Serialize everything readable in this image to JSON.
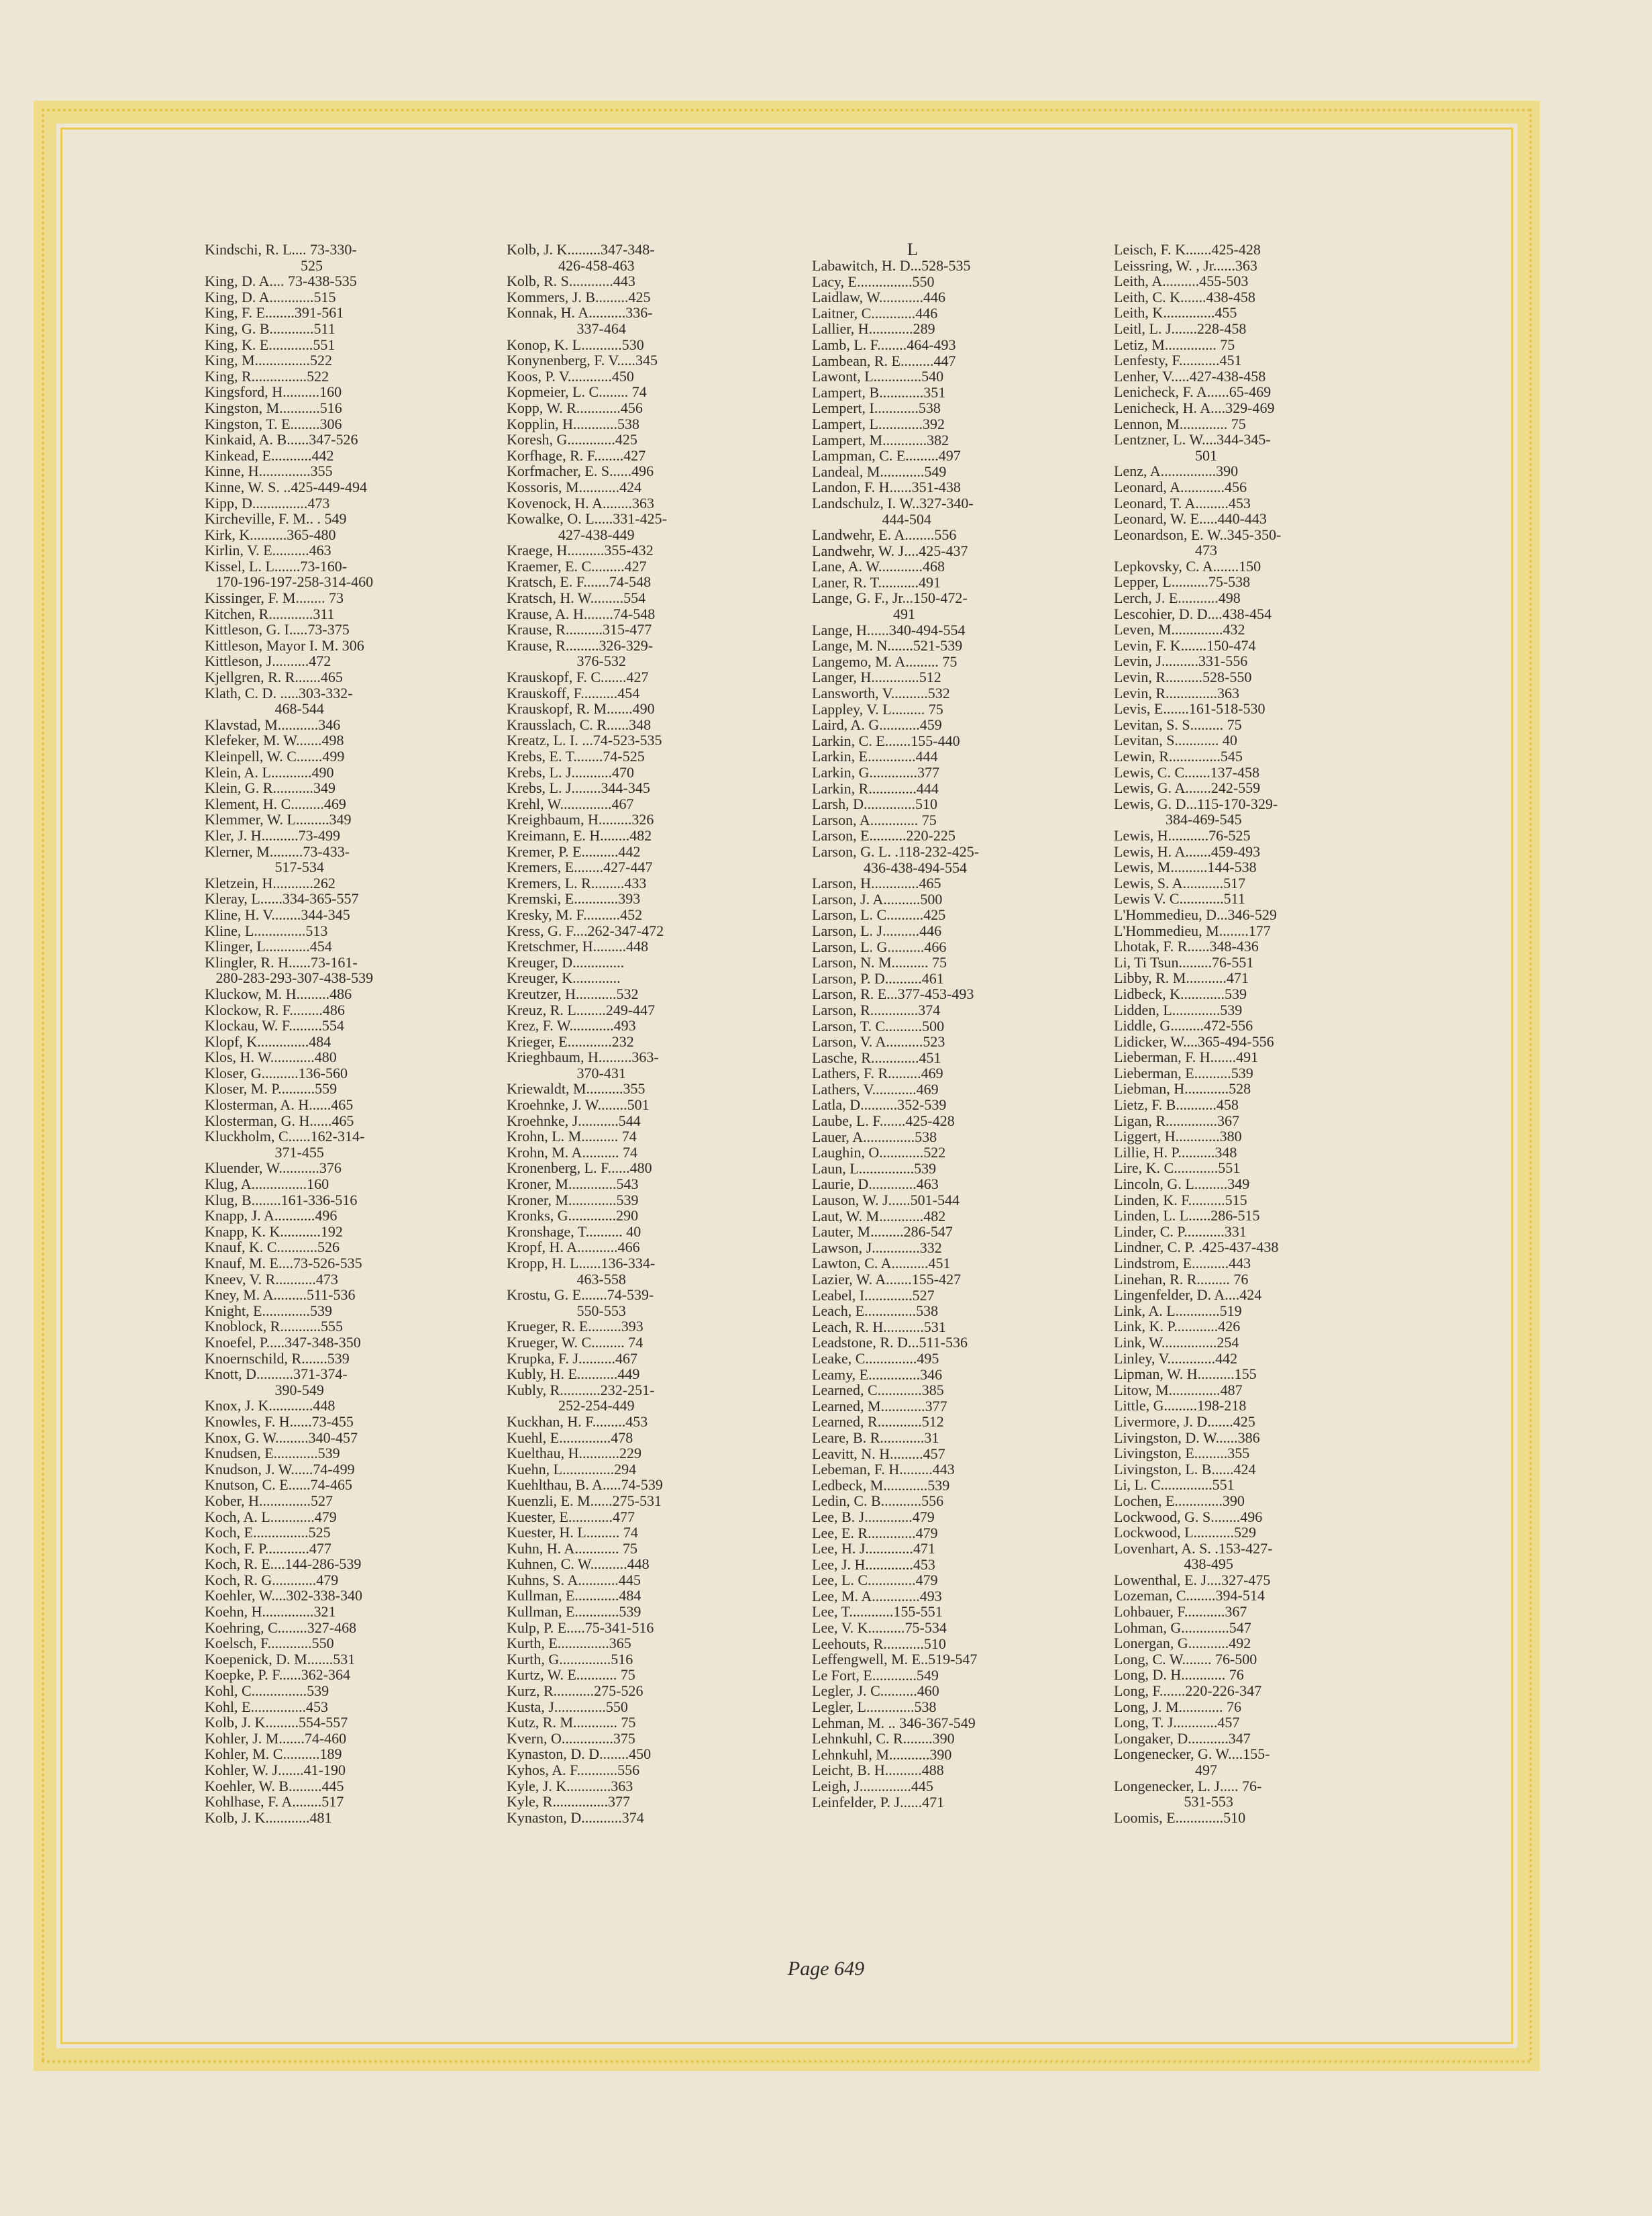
{
  "section_letter": "L",
  "footer": "Page 649",
  "columns": [
    [
      "Kindschi, R. L.... 73-330-",
      "                          525",
      "King, D. A.... 73-438-535",
      "King, D. A............515",
      "King, F. E........391-561",
      "King, G. B............511",
      "King, K. E............551",
      "King, M...............522",
      "King, R...............522",
      "Kingsford, H..........160",
      "Kingston, M...........516",
      "Kingston, T. E........306",
      "Kinkaid, A. B......347-526",
      "Kinkead, E...........442",
      "Kinne, H..............355",
      "Kinne, W. S. ..425-449-494",
      "Kipp, D...............473",
      "Kircheville, F. M.. . 549",
      "Kirk, K..........365-480",
      "Kirlin, V. E..........463",
      "Kissel, L. L.......73-160-",
      "   170-196-197-258-314-460",
      "Kissinger, F. M........ 73",
      "Kitchen, R............311",
      "Kittleson, G. I.....73-375",
      "Kittleson, Mayor I. M. 306",
      "Kittleson, J..........472",
      "Kjellgren, R. R.......465",
      "Klath, C. D. .....303-332-",
      "                   468-544",
      "Klavstad, M...........346",
      "Klefeker, M. W.......498",
      "Kleinpell, W. C.......499",
      "Klein, A. L...........490",
      "Klein, G. R...........349",
      "Klement, H. C.........469",
      "Klemmer, W. L.........349",
      "Kler, J. H..........73-499",
      "Klerner, M.........73-433-",
      "                   517-534",
      "Kletzein, H...........262",
      "Kleray, L......334-365-557",
      "Kline, H. V........344-345",
      "Kline, L..............513",
      "Klinger, L............454",
      "Klingler, R. H......73-161-",
      "   280-283-293-307-438-539",
      "Kluckow, M. H.........486",
      "Klockow, R. F.........486",
      "Klockau, W. F.........554",
      "Klopf, K..............484",
      "Klos, H. W............480",
      "Kloser, G..........136-560",
      "Kloser, M. P..........559",
      "Klosterman, A. H......465",
      "Klosterman, G. H......465",
      "Kluckholm, C......162-314-",
      "                   371-455",
      "Kluender, W...........376",
      "Klug, A...............160",
      "Klug, B........161-336-516",
      "Knapp, J. A...........496",
      "Knapp, K. K...........192",
      "Knauf, K. C...........526",
      "Knauf, M. E....73-526-535",
      "Kneev, V. R...........473",
      "Kney, M. A.........511-536",
      "Knight, E.............539",
      "Knoblock, R...........555",
      "Knoefel, P.....347-348-350",
      "Knoernschild, R.......539",
      "Knott, D..........371-374-",
      "                   390-549",
      "Knox, J. K............448",
      "Knowles, F. H......73-455",
      "Knox, G. W.........340-457",
      "Knudsen, E............539",
      "Knudson, J. W......74-499",
      "Knutson, C. E......74-465",
      "Kober, H..............527",
      "Koch, A. L............479",
      "Koch, E...............525",
      "Koch, F. P............477",
      "Koch, R. E....144-286-539",
      "Koch, R. G............479",
      "Koehler, W....302-338-340",
      "Koehn, H..............321",
      "Koehring, C........327-468",
      "Koelsch, F............550",
      "Koepenick, D. M.......531",
      "Koepke, P. F......362-364",
      "Kohl, C...............539",
      "Kohl, E...............453",
      "Kolb, J. K.........554-557",
      "Kohler, J. M.......74-460",
      "Kohler, M. C..........189",
      "Kohler, W. J.......41-190",
      "Koehler, W. B.........445",
      "Kohlhase, F. A........517",
      "Kolb, J. K............481"
    ],
    [
      "Kolb, J. K.........347-348-",
      "              426-458-463",
      "Kolb, R. S............443",
      "Kommers, J. B.........425",
      "Konnak, H. A..........336-",
      "                   337-464",
      "Konop, K. L...........530",
      "Konynenberg, F. V.....345",
      "Koos, P. V............450",
      "Kopmeier, L. C........ 74",
      "Kopp, W. R............456",
      "Kopplin, H............538",
      "Koresh, G.............425",
      "Korfhage, R. F........427",
      "Korfmacher, E. S......496",
      "Kossoris, M...........424",
      "Kovenock, H. A........363",
      "Kowalke, O. L.....331-425-",
      "              427-438-449",
      "Kraege, H..........355-432",
      "Kraemer, E. C.........427",
      "Kratsch, E. F.......74-548",
      "Kratsch, H. W.........554",
      "Krause, A. H........74-548",
      "Krause, R..........315-477",
      "Krause, R.........326-329-",
      "                   376-532",
      "Krauskopf, F. C.......427",
      "Krauskoff, F..........454",
      "Krauskopf, R. M.......490",
      "Krausslach, C. R......348",
      "Kreatz, L. I. ...74-523-535",
      "Krebs, E. T........74-525",
      "Krebs, L. J...........470",
      "Krebs, L. J........344-345",
      "Krehl, W..............467",
      "Kreighbaum, H.........326",
      "Kreimann, E. H........482",
      "Kremer, P. E..........442",
      "Kremers, E........427-447",
      "Kremers, L. R.........433",
      "Kremski, E............393",
      "Kresky, M. F..........452",
      "Kress, G. F....262-347-472",
      "Kretschmer, H.........448",
      "Kreuger, D..............",
      "Kreuger, K.............",
      "Kreutzer, H...........532",
      "Kreuz, R. L........249-447",
      "Krez, F. W............493",
      "Krieger, E............232",
      "Krieghbaum, H.........363-",
      "                   370-431",
      "Kriewaldt, M..........355",
      "Kroehnke, J. W........501",
      "Kroehnke, J...........544",
      "Krohn, L. M.......... 74",
      "Krohn, M. A.......... 74",
      "Kronenberg, L. F......480",
      "Kroner, M.............543",
      "Kroner, M.............539",
      "Kronks, G.............290",
      "Kronshage, T.......... 40",
      "Kropf, H. A...........466",
      "Kropp, H. L......136-334-",
      "                   463-558",
      "Krostu, G. E.......74-539-",
      "                   550-553",
      "Krueger, R. E.........393",
      "Krueger, W. C......... 74",
      "Krupka, F. J..........467",
      "Kubly, H. E...........449",
      "Kubly, R...........232-251-",
      "              252-254-449",
      "Kuckhan, H. F.........453",
      "Kuehl, E..............478",
      "Kuelthau, H...........229",
      "Kuehn, L..............294",
      "Kuehlthau, B. A.....74-539",
      "Kuenzli, E. M......275-531",
      "Kuester, E............477",
      "Kuester, H. L......... 74",
      "Kuhn, H. A............ 75",
      "Kuhnen, C. W..........448",
      "Kuhns, S. A...........445",
      "Kullman, E............484",
      "Kullman, E............539",
      "Kulp, P. E.....75-341-516",
      "Kurth, E..............365",
      "Kurth, G..............516",
      "Kurtz, W. E........... 75",
      "Kurz, R...........275-526",
      "Kusta, J..............550",
      "Kutz, R. M............ 75",
      "Kvern, O..............375",
      "Kynaston, D. D........450",
      "Kyhos, A. F...........556",
      "Kyle, J. K............363",
      "Kyle, R...............377",
      "Kynaston, D...........374"
    ],
    [
      "Labawitch, H. D...528-535",
      "Lacy, E...............550",
      "Laidlaw, W............446",
      "Laitner, C............446",
      "Lallier, H............289",
      "Lamb, L. F........464-493",
      "Lambean, R. E.........447",
      "Lawont, L.............540",
      "Lampert, B............351",
      "Lempert, I............538",
      "Lampert, L............392",
      "Lampert, M............382",
      "Lampman, C. E.........497",
      "Landeal, M............549",
      "Landon, F. H......351-438",
      "Landschulz, I. W..327-340-",
      "                   444-504",
      "Landwehr, E. A........556",
      "Landwehr, W. J....425-437",
      "Lane, A. W............468",
      "Laner, R. T...........491",
      "Lange, G. F., Jr...150-472-",
      "                      491",
      "Lange, H......340-494-554",
      "Lange, M. N.......521-539",
      "Langemo, M. A......... 75",
      "Langer, H.............512",
      "Lansworth, V..........532",
      "Lappley, V. L......... 75",
      "Laird, A. G...........459",
      "Larkin, C. E.......155-440",
      "Larkin, E.............444",
      "Larkin, G.............377",
      "Larkin, R.............444",
      "Larsh, D..............510",
      "Larson, A............. 75",
      "Larson, E..........220-225",
      "Larson, G. L. .118-232-425-",
      "              436-438-494-554",
      "Larson, H.............465",
      "Larson, J. A..........500",
      "Larson, L. C..........425",
      "Larson, L. J..........446",
      "Larson, L. G..........466",
      "Larson, N. M.......... 75",
      "Larson, P. D..........461",
      "Larson, R. E...377-453-493",
      "Larson, R.............374",
      "Larson, T. C..........500",
      "Larson, V. A..........523",
      "Lasche, R.............451",
      "Lathers, F. R.........469",
      "Lathers, V............469",
      "Latla, D..........352-539",
      "Laube, L. F.......425-428",
      "Lauer, A..............538",
      "Laughin, O............522",
      "Laun, L...............539",
      "Laurie, D.............463",
      "Lauson, W. J......501-544",
      "Laut, W. M............482",
      "Lauter, M.........286-547",
      "Lawson, J.............332",
      "Lawton, C. A..........451",
      "Lazier, W. A.......155-427",
      "Leabel, I.............527",
      "Leach, E..............538",
      "Leach, R. H...........531",
      "Leadstone, R. D...511-536",
      "Leake, C..............495",
      "Leamy, E..............346",
      "Learned, C............385",
      "Learned, M............377",
      "Learned, R............512",
      "Leare, B. R............31",
      "Leavitt, N. H.........457",
      "Lebeman, F. H.........443",
      "Ledbeck, M............539",
      "Ledin, C. B...........556",
      "Lee, B. J.............479",
      "Lee, E. R.............479",
      "Lee, H. J.............471",
      "Lee, J. H.............453",
      "Lee, L. C.............479",
      "Lee, M. A.............493",
      "Lee, T............155-551",
      "Lee, V. K..........75-534",
      "Leehouts, R...........510",
      "Leffengwell, M. E..519-547",
      "Le Fort, E............549",
      "Legler, J. C..........460",
      "Legler, L.............538",
      "Lehman, M. .. 346-367-549",
      "Lehnkuhl, C. R........390",
      "Lehnkuhl, M...........390",
      "Leicht, B. H..........488",
      "Leigh, J..............445",
      "Leinfelder, P. J......471"
    ],
    [
      "Leisch, F. K.......425-428",
      "Leissring, W. , Jr......363",
      "Leith, A..........455-503",
      "Leith, C. K.......438-458",
      "Leith, K..............455",
      "Leitl, L. J.......228-458",
      "Letiz, M.............. 75",
      "Lenfesty, F...........451",
      "Lenher, V.....427-438-458",
      "Lenicheck, F. A......65-469",
      "Lenicheck, H. A....329-469",
      "Lennon, M............. 75",
      "Lentzner, L. W....344-345-",
      "                      501",
      "Lenz, A...............390",
      "Leonard, A............456",
      "Leonard, T. A.........453",
      "Leonard, W. E.....440-443",
      "Leonardson, E. W..345-350-",
      "                      473",
      "Lepkovsky, C. A.......150",
      "Lepper, L..........75-538",
      "Lerch, J. E...........498",
      "Lescohier, D. D....438-454",
      "Leven, M..............432",
      "Levin, F. K.......150-474",
      "Levin, J..........331-556",
      "Levin, R..........528-550",
      "Levin, R..............363",
      "Levis, E.......161-518-530",
      "Levitan, S. S......... 75",
      "Levitan, S............ 40",
      "Lewin, R..............545",
      "Lewis, C. C.......137-458",
      "Lewis, G. A.......242-559",
      "Lewis, G. D...115-170-329-",
      "              384-469-545",
      "Lewis, H...........76-525",
      "Lewis, H. A.......459-493",
      "Lewis, M..........144-538",
      "Lewis, S. A...........517",
      "Lewis V. C............511",
      "L'Hommedieu, D...346-529",
      "L'Hommedieu, M........177",
      "Lhotak, F. R......348-436",
      "Li, Ti Tsun.........76-551",
      "Libby, R. M...........471",
      "Lidbeck, K............539",
      "Lidden, L.............539",
      "Liddle, G.........472-556",
      "Lidicker, W....365-494-556",
      "Lieberman, F. H.......491",
      "Lieberman, E..........539",
      "Liebman, H............528",
      "Lietz, F. B...........458",
      "Ligan, R..............367",
      "Liggert, H............380",
      "Lillie, H. P..........348",
      "Lire, K. C............551",
      "Lincoln, G. L.........349",
      "Linden, K. F..........515",
      "Linden, L. L......286-515",
      "Linder, C. P...........331",
      "Lindner, C. P. .425-437-438",
      "Lindstrom, E..........443",
      "Linehan, R. R......... 76",
      "Lingenfelder, D. A....424",
      "Link, A. L............519",
      "Link, K. P............426",
      "Link, W...............254",
      "Linley, V.............442",
      "Lipman, W. H..........155",
      "Litow, M..............487",
      "Little, G.........198-218",
      "Livermore, J. D.......425",
      "Livingston, D. W......386",
      "Livingston, E.........355",
      "Livingston, L. B......424",
      "Li, L. C..............551",
      "Lochen, E.............390",
      "Lockwood, G. S........496",
      "Lockwood, L...........529",
      "Lovenhart, A. S. .153-427-",
      "                   438-495",
      "Lowenthal, E. J....327-475",
      "Lozeman, C........394-514",
      "Lohbauer, F...........367",
      "Lohman, G.............547",
      "Lonergan, G...........492",
      "Long, C. W........ 76-500",
      "Long, D. H............ 76",
      "Long, F.......220-226-347",
      "Long, J. M............ 76",
      "Long, T. J............457",
      "Longaker, D...........347",
      "Longenecker, G. W....155-",
      "                      497",
      "Longenecker, L. J..... 76-",
      "                   531-553",
      "Loomis, E.............510"
    ]
  ]
}
